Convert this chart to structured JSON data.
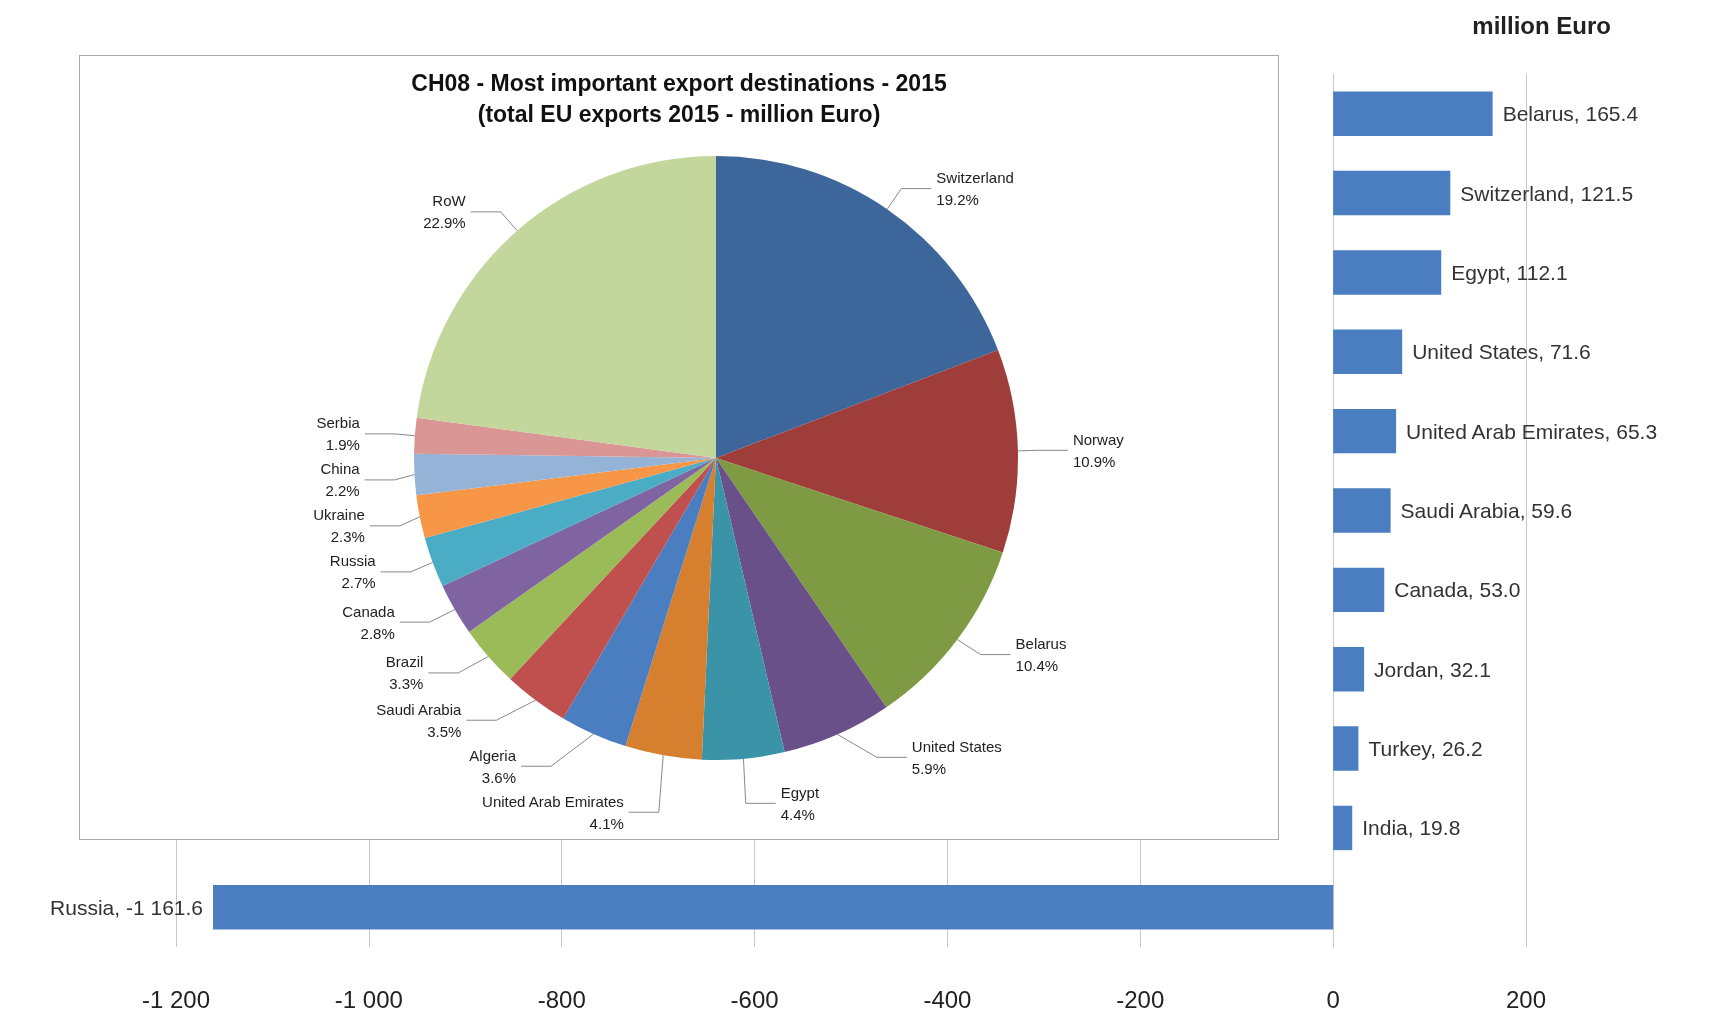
{
  "chart_data": [
    {
      "type": "bar",
      "orientation": "horizontal",
      "title": "million Euro",
      "categories": [
        null,
        null,
        null,
        null,
        null,
        null,
        null,
        null,
        null,
        null,
        null
      ],
      "values": [
        165.4,
        121.5,
        112.1,
        71.6,
        65.3,
        59.6,
        53.0,
        32.1,
        26.2,
        19.8,
        -1161.6
      ],
      "value_labels": [
        "Belarus, 165.4",
        "Switzerland, 121.5",
        "Egypt, 112.1",
        "United States, 71.6",
        "United Arab Emirates, 65.3",
        "Saudi Arabia, 59.6",
        "Canada, 53.0",
        "Jordan, 32.1",
        "Turkey, 26.2",
        "India, 19.8",
        "Russia, -1 161.6"
      ],
      "color": "#4a7ec0",
      "xlim": [
        -1200,
        200
      ],
      "xticks": [
        {
          "value": -1200,
          "label": "-1 200"
        },
        {
          "value": -1000,
          "label": "-1 000"
        },
        -800,
        -600,
        -400,
        -200,
        0,
        200
      ],
      "grid": "x"
    },
    {
      "type": "pie",
      "title": "CH08 - Most important export destinations - 2015",
      "subtitle": "(total EU exports 2015 - million Euro)",
      "categories": [
        "Switzerland",
        "Norway",
        "Belarus",
        "United States",
        "Egypt",
        "United Arab Emirates",
        "Algeria",
        "Saudi Arabia",
        "Brazil",
        "Canada",
        "Russia",
        "Ukraine",
        "China",
        "Serbia",
        "RoW"
      ],
      "values": [
        19.2,
        10.9,
        10.4,
        5.9,
        4.4,
        4.1,
        3.6,
        3.5,
        3.3,
        2.8,
        2.7,
        2.3,
        2.2,
        1.9,
        22.9
      ],
      "value_labels": [
        "19.2%",
        "10.9%",
        "10.4%",
        "5.9%",
        "4.4%",
        "4.1%",
        "3.6%",
        "3.5%",
        "3.3%",
        "2.8%",
        "2.7%",
        "2.3%",
        "2.2%",
        "1.9%",
        "22.9%"
      ],
      "colors": [
        "#3d679b",
        "#9e3d3a",
        "#7e9a42",
        "#6a5089",
        "#3b93a8",
        "#d6802f",
        "#4a7ec0",
        "#c0504d",
        "#9bbb59",
        "#8064a2",
        "#4bacc6",
        "#f79646",
        "#95b3d7",
        "#d99694",
        "#c3d69b"
      ]
    }
  ]
}
